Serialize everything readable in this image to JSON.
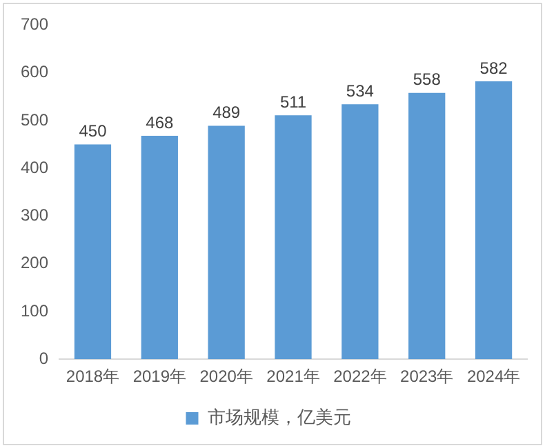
{
  "chart_data": {
    "type": "bar",
    "categories": [
      "2018年",
      "2019年",
      "2020年",
      "2021年",
      "2022年",
      "2023年",
      "2024年"
    ],
    "series": [
      {
        "name": "市场规模，亿美元",
        "color": "#5b9bd5",
        "values": [
          450,
          468,
          489,
          511,
          534,
          558,
          582
        ]
      }
    ],
    "ylim": [
      0,
      700
    ],
    "yticks": [
      0,
      100,
      200,
      300,
      400,
      500,
      600,
      700
    ],
    "grid": false,
    "legend": "bottom",
    "data_labels": true
  }
}
